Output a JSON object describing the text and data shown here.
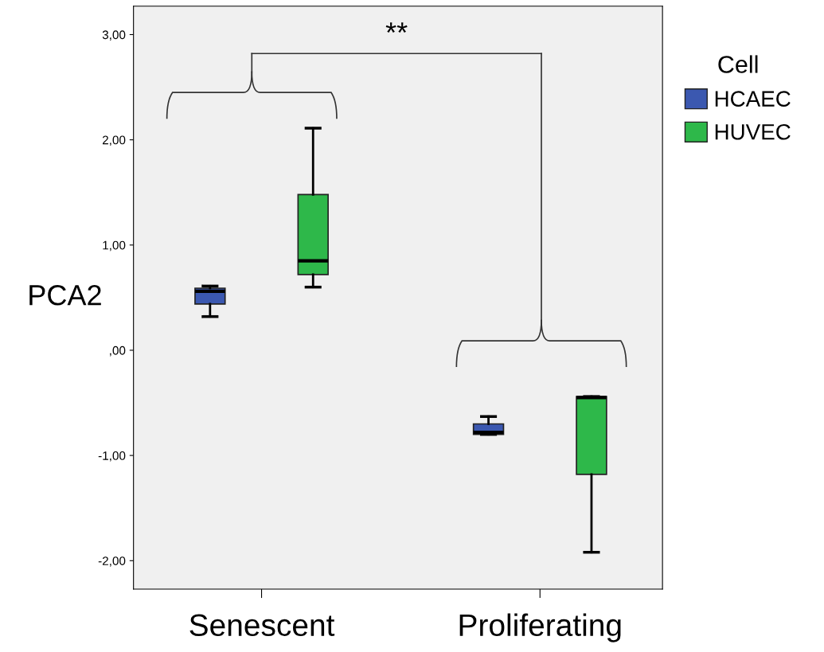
{
  "chart_data": {
    "type": "box",
    "ylabel": "PCA2",
    "legend_title": "Cell",
    "legend": "top right",
    "grid": false,
    "categories": [
      "Senescent",
      "Proliferating"
    ],
    "series": [
      {
        "name": "HCAEC",
        "color": "#3b58b0",
        "boxes": [
          {
            "low": 0.32,
            "q1": 0.44,
            "median": 0.56,
            "q3": 0.59,
            "high": 0.61
          },
          {
            "low": -0.8,
            "q1": -0.8,
            "median": -0.78,
            "q3": -0.7,
            "high": -0.63
          }
        ]
      },
      {
        "name": "HUVEC",
        "color": "#2eb84a",
        "boxes": [
          {
            "low": 0.6,
            "q1": 0.72,
            "median": 0.85,
            "q3": 1.48,
            "high": 2.11
          },
          {
            "low": -1.92,
            "q1": -1.18,
            "median": -0.45,
            "q3": -0.44,
            "high": -0.44
          }
        ]
      }
    ],
    "ylim": [
      -2.27,
      3.27
    ],
    "yticks": [
      {
        "value": -2,
        "label": "-2,00"
      },
      {
        "value": -1,
        "label": "-1,00"
      },
      {
        "value": 0,
        "label": ",00"
      },
      {
        "value": 1,
        "label": "1,00"
      },
      {
        "value": 2,
        "label": "2,00"
      },
      {
        "value": 3,
        "label": "3,00"
      }
    ],
    "annotations": [
      "**"
    ]
  }
}
